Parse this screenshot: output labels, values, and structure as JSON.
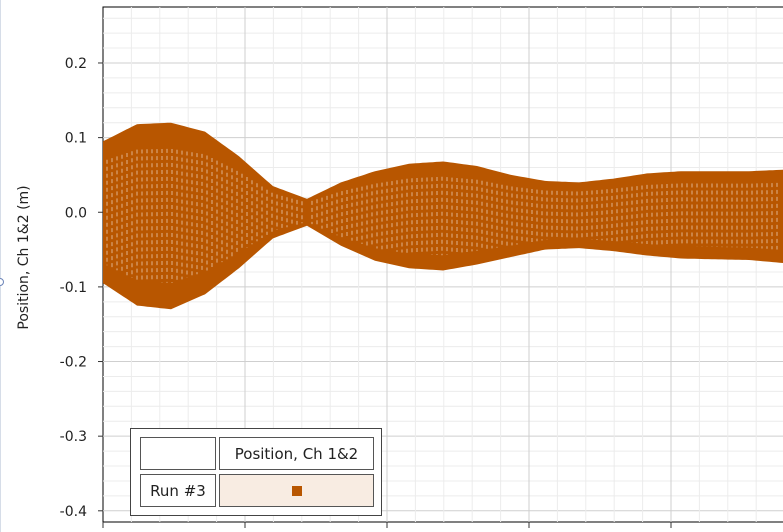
{
  "chart_data": {
    "type": "line",
    "ylabel": "Position, Ch 1&2 (m)",
    "xlabel": "",
    "ylim": [
      -0.415,
      0.275
    ],
    "yticks": [
      0.2,
      0.1,
      0.0,
      -0.1,
      -0.2,
      -0.3,
      -0.4
    ],
    "ytick_labels": [
      "0.2",
      "0.1",
      "0.0",
      "-0.1",
      "-0.2",
      "-0.3",
      "-0.4"
    ],
    "grid": true,
    "legend_placement": "bottom-left",
    "series": [
      {
        "name": "Run #3",
        "color": "#b85600",
        "envelope_x": [
          0.0,
          0.05,
          0.1,
          0.15,
          0.2,
          0.25,
          0.3,
          0.35,
          0.4,
          0.45,
          0.5,
          0.55,
          0.6,
          0.65,
          0.7,
          0.75,
          0.8,
          0.85,
          0.9,
          0.95,
          1.0
        ],
        "envelope_upper": [
          0.095,
          0.118,
          0.12,
          0.108,
          0.075,
          0.035,
          0.018,
          0.04,
          0.055,
          0.065,
          0.068,
          0.062,
          0.05,
          0.042,
          0.04,
          0.045,
          0.052,
          0.055,
          0.055,
          0.055,
          0.057
        ],
        "envelope_lower": [
          -0.095,
          -0.125,
          -0.13,
          -0.11,
          -0.075,
          -0.035,
          -0.018,
          -0.045,
          -0.065,
          -0.075,
          -0.078,
          -0.07,
          -0.06,
          -0.05,
          -0.048,
          -0.052,
          -0.058,
          -0.062,
          -0.063,
          -0.064,
          -0.068
        ]
      }
    ]
  },
  "legend": {
    "header": "Position, Ch 1&2",
    "run_label": "Run #3",
    "swatch_color": "#b85600"
  }
}
